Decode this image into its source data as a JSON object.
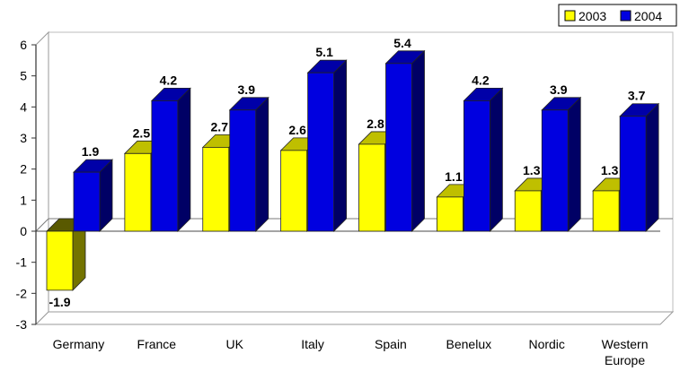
{
  "chart_data": {
    "type": "bar",
    "categories": [
      "Germany",
      "France",
      "UK",
      "Italy",
      "Spain",
      "Benelux",
      "Nordic",
      "Western Europe"
    ],
    "category_lines": [
      [
        "Germany"
      ],
      [
        "France"
      ],
      [
        "UK"
      ],
      [
        "Italy"
      ],
      [
        "Spain"
      ],
      [
        "Benelux"
      ],
      [
        "Nordic"
      ],
      [
        "Western",
        "Europe"
      ]
    ],
    "series": [
      {
        "name": "2003",
        "values": [
          -1.9,
          2.5,
          2.7,
          2.6,
          2.8,
          1.1,
          1.3,
          1.3
        ],
        "labels": [
          "-1.9",
          "2.5",
          "2.7",
          "2.6",
          "2.8",
          "1.1",
          "1.3",
          "1.3"
        ],
        "color": "#ffff00"
      },
      {
        "name": "2004",
        "values": [
          1.9,
          4.2,
          3.9,
          5.1,
          5.4,
          4.2,
          3.9,
          3.7
        ],
        "labels": [
          "1.9",
          "4.2",
          "3.9",
          "5.1",
          "5.4",
          "4.2",
          "3.9",
          "3.7"
        ],
        "color": "#0000e0"
      }
    ],
    "ylim": [
      -3,
      6
    ],
    "yticks": [
      -3,
      -2,
      -1,
      0,
      1,
      2,
      3,
      4,
      5,
      6
    ],
    "ytick_labels": [
      "-3",
      "-2",
      "-1",
      "0",
      "1",
      "2",
      "3",
      "4",
      "5",
      "6"
    ],
    "title": "",
    "xlabel": "",
    "ylabel": "",
    "grid": false,
    "legend": {
      "position": "top-right",
      "labels": [
        "2003",
        "2004"
      ]
    },
    "style": "3d"
  }
}
